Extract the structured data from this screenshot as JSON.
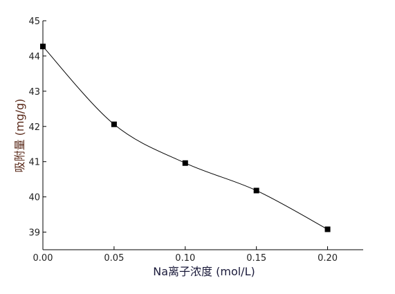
{
  "chart_data": {
    "type": "line",
    "x_label": "Na离子浓度 (mol/L)",
    "y_label": "吸附量 (mg/g)",
    "x": [
      0,
      0.05,
      0.1,
      0.15,
      0.2
    ],
    "values": [
      44.27,
      42.06,
      40.96,
      40.18,
      39.08
    ],
    "color": "#000000",
    "xlim": [
      0,
      0.225
    ],
    "xticks": [
      {
        "value": 0,
        "label": "0.00"
      },
      {
        "value": 0.05,
        "label": "0.05"
      },
      {
        "value": 0.1,
        "label": "0.10"
      },
      {
        "value": 0.15,
        "label": "0.15"
      },
      {
        "value": 0.2,
        "label": "0.20"
      }
    ],
    "ylim": [
      38.5,
      45
    ],
    "yticks": [
      39,
      40,
      41,
      42,
      43,
      44,
      45
    ],
    "smooth": true,
    "grid": false
  }
}
